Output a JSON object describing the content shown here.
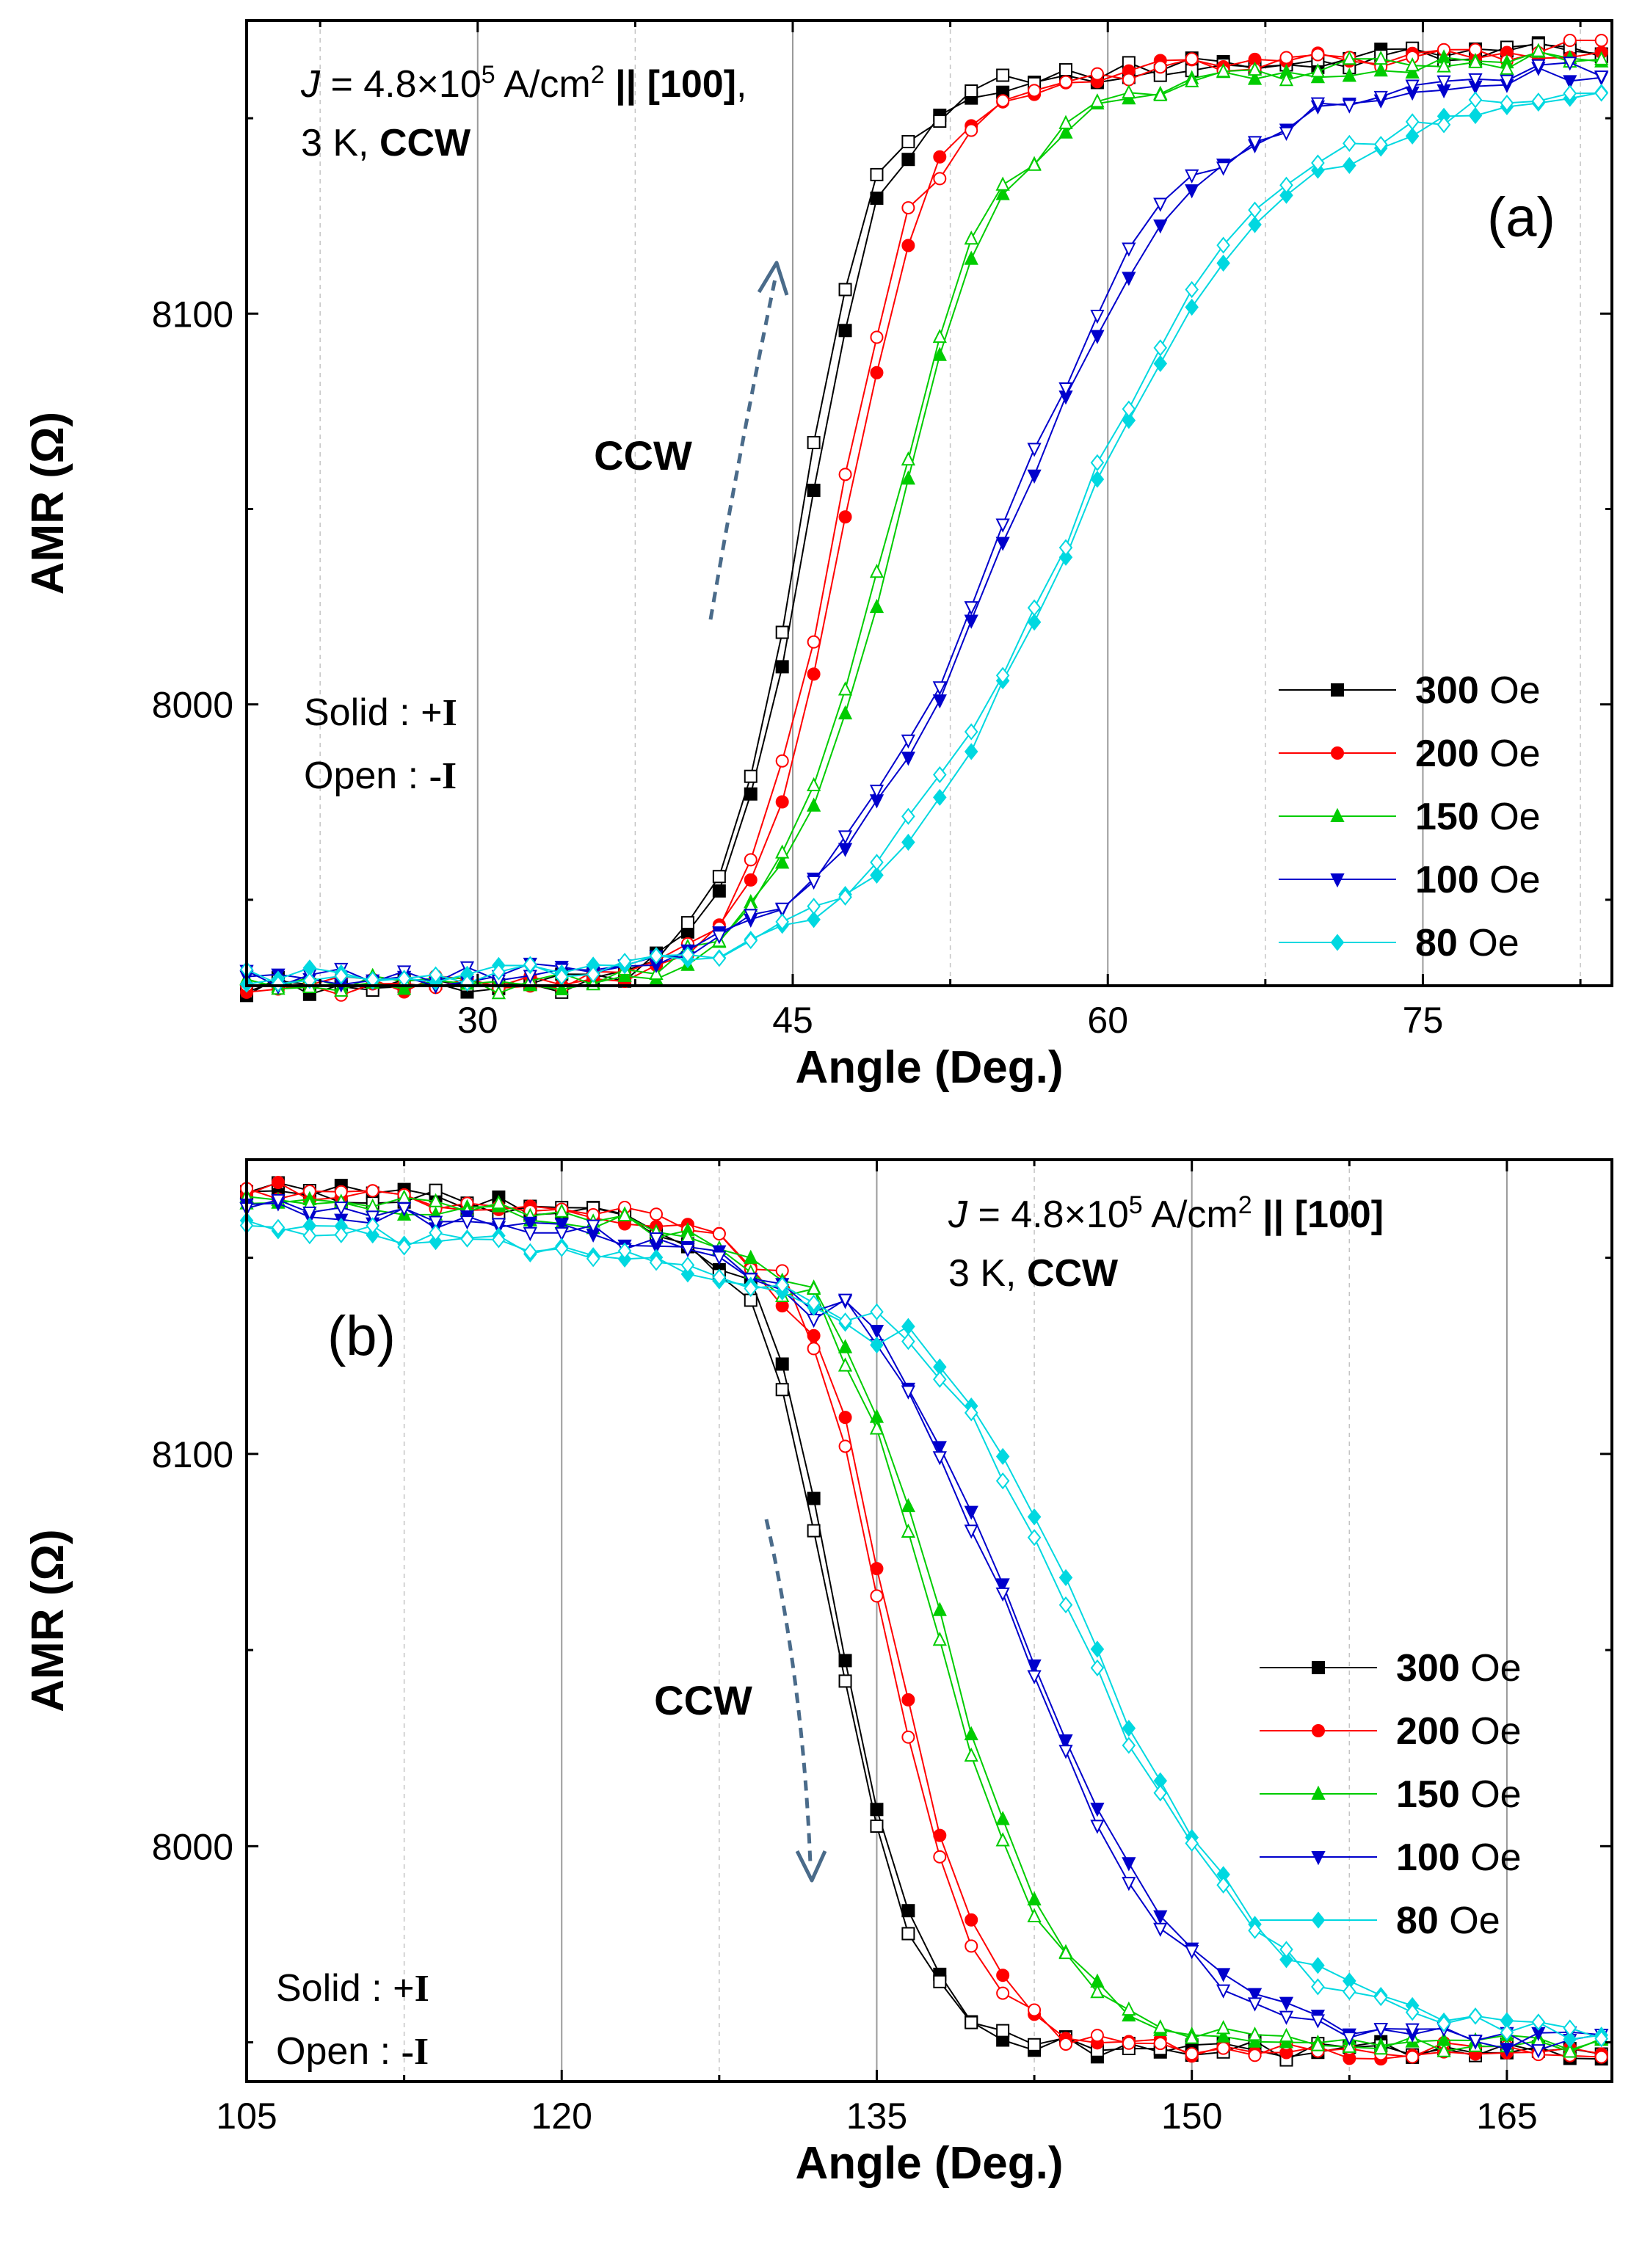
{
  "chart_data": [
    {
      "panel_label": "(a)",
      "type": "line",
      "xlabel": "Angle (Deg.)",
      "ylabel": "AMR (Ω)",
      "xlim": [
        19,
        84
      ],
      "ylim": [
        7928,
        8175
      ],
      "xticks": [
        30,
        45,
        60,
        75
      ],
      "yticks": [
        8000,
        8100
      ],
      "annotation": {
        "j_prefix": "J = 4.8×10",
        "j_exp": "5",
        "j_unit": " A/cm",
        "j_unit_exp": "2",
        "j_sep": " || ",
        "j_dir": "[100]",
        "j_comma": ",",
        "temp": "3 K, ",
        "rot": "CCW"
      },
      "solid_open": {
        "solid_label": "Solid : ",
        "solid_sign": "+I",
        "open_label": "Open : ",
        "open_sign": "-I"
      },
      "arrow_label": "CCW",
      "legend_unit": "Oe",
      "legend_position": "lower-right",
      "grid": true,
      "x": [
        19,
        20.5,
        22,
        23.5,
        25,
        26.5,
        28,
        29.5,
        31,
        32.5,
        34,
        35.5,
        37,
        38.5,
        40,
        41.5,
        43,
        44.5,
        46,
        47.5,
        49,
        50.5,
        52,
        53.5,
        55,
        56.5,
        58,
        59.5,
        61,
        62.5,
        64,
        65.5,
        67,
        68.5,
        70,
        71.5,
        73,
        74.5,
        76,
        77.5,
        79,
        80.5,
        82,
        83.5
      ],
      "series": [
        {
          "name": "300",
          "color": "#000000",
          "marker": "square",
          "x0": 45.8,
          "w": 0.9,
          "ylow": 7928,
          "yhigh": 8168
        },
        {
          "name": "200",
          "color": "#ff0000",
          "marker": "circle",
          "x0": 47.5,
          "w": 1.0,
          "ylow": 7928,
          "yhigh": 8168
        },
        {
          "name": "150",
          "color": "#00cc00",
          "marker": "triangle-up",
          "x0": 50.0,
          "w": 1.3,
          "ylow": 7928,
          "yhigh": 8166
        },
        {
          "name": "100",
          "color": "#0000cc",
          "marker": "triangle-down",
          "x0": 55.5,
          "w": 2.0,
          "ylow": 7930,
          "yhigh": 8163
        },
        {
          "name": "80",
          "color": "#00d8e0",
          "marker": "diamond",
          "x0": 58.5,
          "w": 2.2,
          "ylow": 7930,
          "yhigh": 8158
        }
      ]
    },
    {
      "panel_label": "(b)",
      "type": "line",
      "xlabel": "Angle (Deg.)",
      "ylabel": "AMR (Ω)",
      "xlim": [
        105,
        170
      ],
      "ylim": [
        7940,
        8175
      ],
      "xticks": [
        105,
        120,
        135,
        150,
        165
      ],
      "yticks": [
        8000,
        8100
      ],
      "annotation": {
        "j_prefix": "J = 4.8×10",
        "j_exp": "5",
        "j_unit": " A/cm",
        "j_unit_exp": "2",
        "j_sep": " || ",
        "j_dir": "[100]",
        "j_comma": "",
        "temp": "3 K, ",
        "rot": "CCW"
      },
      "solid_open": {
        "solid_label": "Solid : ",
        "solid_sign": "+I",
        "open_label": "Open : ",
        "open_sign": "-I"
      },
      "arrow_label": "CCW",
      "legend_unit": "Oe",
      "legend_position": "lower-right",
      "grid": true,
      "x": [
        105,
        106.5,
        108,
        109.5,
        111,
        112.5,
        114,
        115.5,
        117,
        118.5,
        120,
        121.5,
        123,
        124.5,
        126,
        127.5,
        129,
        130.5,
        132,
        133.5,
        135,
        136.5,
        138,
        139.5,
        141,
        142.5,
        144,
        145.5,
        147,
        148.5,
        150,
        151.5,
        153,
        154.5,
        156,
        157.5,
        159,
        160.5,
        162,
        163.5,
        165,
        166.5,
        168,
        169.5
      ],
      "series": [
        {
          "name": "300",
          "color": "#000000",
          "marker": "square",
          "x0": 133.2,
          "w": 0.9,
          "ylow": 7948,
          "yhigh": 8168
        },
        {
          "name": "200",
          "color": "#ff0000",
          "marker": "circle",
          "x0": 135.6,
          "w": 1.0,
          "ylow": 7948,
          "yhigh": 8168
        },
        {
          "name": "150",
          "color": "#00cc00",
          "marker": "triangle-up",
          "x0": 138.0,
          "w": 1.3,
          "ylow": 7950,
          "yhigh": 8166
        },
        {
          "name": "100",
          "color": "#0000cc",
          "marker": "triangle-down",
          "x0": 141.8,
          "w": 1.8,
          "ylow": 7950,
          "yhigh": 8163
        },
        {
          "name": "80",
          "color": "#00d8e0",
          "marker": "diamond",
          "x0": 145.0,
          "w": 2.0,
          "ylow": 7952,
          "yhigh": 8158
        }
      ]
    }
  ]
}
